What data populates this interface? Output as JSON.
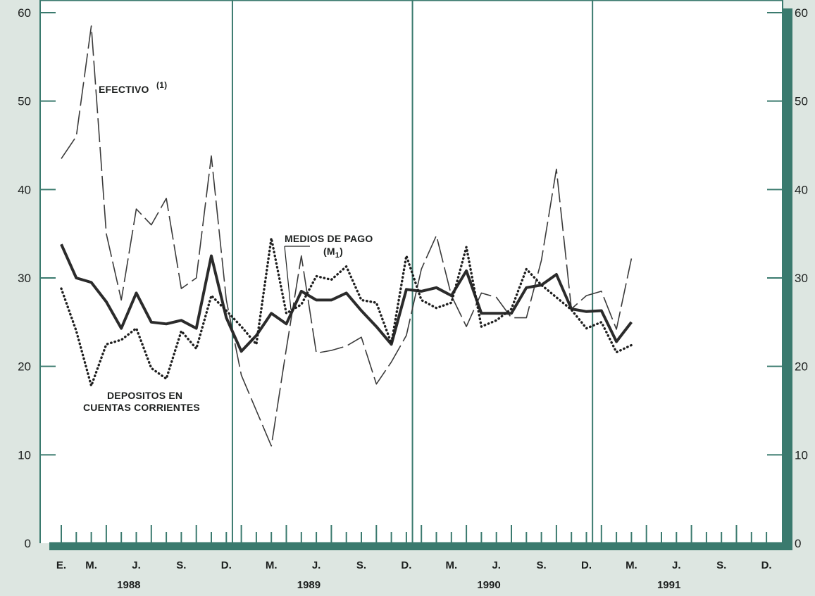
{
  "chart_data": {
    "type": "line",
    "title": "",
    "xlabel": "",
    "ylabel": "",
    "ylim": [
      0,
      60
    ],
    "yticks": [
      "0",
      "10",
      "20",
      "30",
      "40",
      "50",
      "60"
    ],
    "month_labels": [
      "E.",
      "M.",
      "J.",
      "S.",
      "D.",
      "M.",
      "J.",
      "S.",
      "D.",
      "M.",
      "J.",
      "S.",
      "D.",
      "M.",
      "J.",
      "S.",
      "D."
    ],
    "year_labels": [
      "1988",
      "1989",
      "1990",
      "1991"
    ],
    "x": [
      "1988-01",
      "1988-02",
      "1988-03",
      "1988-04",
      "1988-05",
      "1988-06",
      "1988-07",
      "1988-08",
      "1988-09",
      "1988-10",
      "1988-11",
      "1988-12",
      "1989-01",
      "1989-02",
      "1989-03",
      "1989-04",
      "1989-05",
      "1989-06",
      "1989-07",
      "1989-08",
      "1989-09",
      "1989-10",
      "1989-11",
      "1989-12",
      "1990-01",
      "1990-02",
      "1990-03",
      "1990-04",
      "1990-05",
      "1990-06",
      "1990-07",
      "1990-08",
      "1990-09",
      "1990-10",
      "1990-11",
      "1990-12",
      "1991-01",
      "1991-02",
      "1991-03"
    ],
    "grid": "vertical lines at year boundaries",
    "series": [
      {
        "name": "EFECTIVO",
        "style": "long-dash",
        "values": [
          43.5,
          46.0,
          58.5,
          35.0,
          27.5,
          37.8,
          36.0,
          39.0,
          28.8,
          30.0,
          43.8,
          27.5,
          19.0,
          15.0,
          11.0,
          22.0,
          32.5,
          21.5,
          21.8,
          22.3,
          23.3,
          18.0,
          20.5,
          23.5,
          31.0,
          34.8,
          28.0,
          24.5,
          28.3,
          27.8,
          25.5,
          25.5,
          32.0,
          42.3,
          26.5,
          28.0,
          28.5,
          24.2,
          32.2
        ]
      },
      {
        "name": "MEDIOS DE PAGO (M1)",
        "style": "thick-solid",
        "values": [
          33.8,
          30.0,
          29.5,
          27.3,
          24.3,
          28.3,
          25.0,
          24.8,
          25.2,
          24.3,
          32.5,
          25.5,
          21.7,
          23.5,
          26.0,
          24.8,
          28.5,
          27.5,
          27.5,
          28.3,
          26.3,
          24.5,
          22.5,
          28.7,
          28.5,
          28.9,
          28.0,
          30.8,
          26.0,
          26.0,
          26.0,
          28.9,
          29.2,
          30.4,
          26.5,
          26.2,
          26.3,
          22.8,
          25.0
        ]
      },
      {
        "name": "DEPOSITOS EN CUENTAS CORRIENTES",
        "style": "dotted",
        "values": [
          28.8,
          24.0,
          17.8,
          22.5,
          23.0,
          24.3,
          19.8,
          18.6,
          24.0,
          22.0,
          28.0,
          26.3,
          24.5,
          22.5,
          34.5,
          26.0,
          27.0,
          30.2,
          29.8,
          31.3,
          27.5,
          27.2,
          22.6,
          32.5,
          27.5,
          26.6,
          27.2,
          33.5,
          24.5,
          25.2,
          26.5,
          31.0,
          29.2,
          27.8,
          26.4,
          24.3,
          25.0,
          21.6,
          22.4
        ]
      }
    ]
  },
  "annotations": {
    "efectivo": "EFECTIVO",
    "efectivo_note": "(1)",
    "medios_line1": "MEDIOS DE PAGO",
    "medios_line2_open": "(M",
    "medios_line2_sub": "1",
    "medios_line2_close": ")",
    "depositos_line1": "DEPOSITOS EN",
    "depositos_line2": "CUENTAS CORRIENTES"
  },
  "colors": {
    "background": "#dde6e1",
    "plot_area": "#ffffff",
    "axis_frame": "#3a7a6e",
    "ink": "#1c1f1e",
    "efectivo_line": "#3a3a3a",
    "m1_line": "#2b2b2b",
    "depositos_line": "#1f1f1f"
  }
}
